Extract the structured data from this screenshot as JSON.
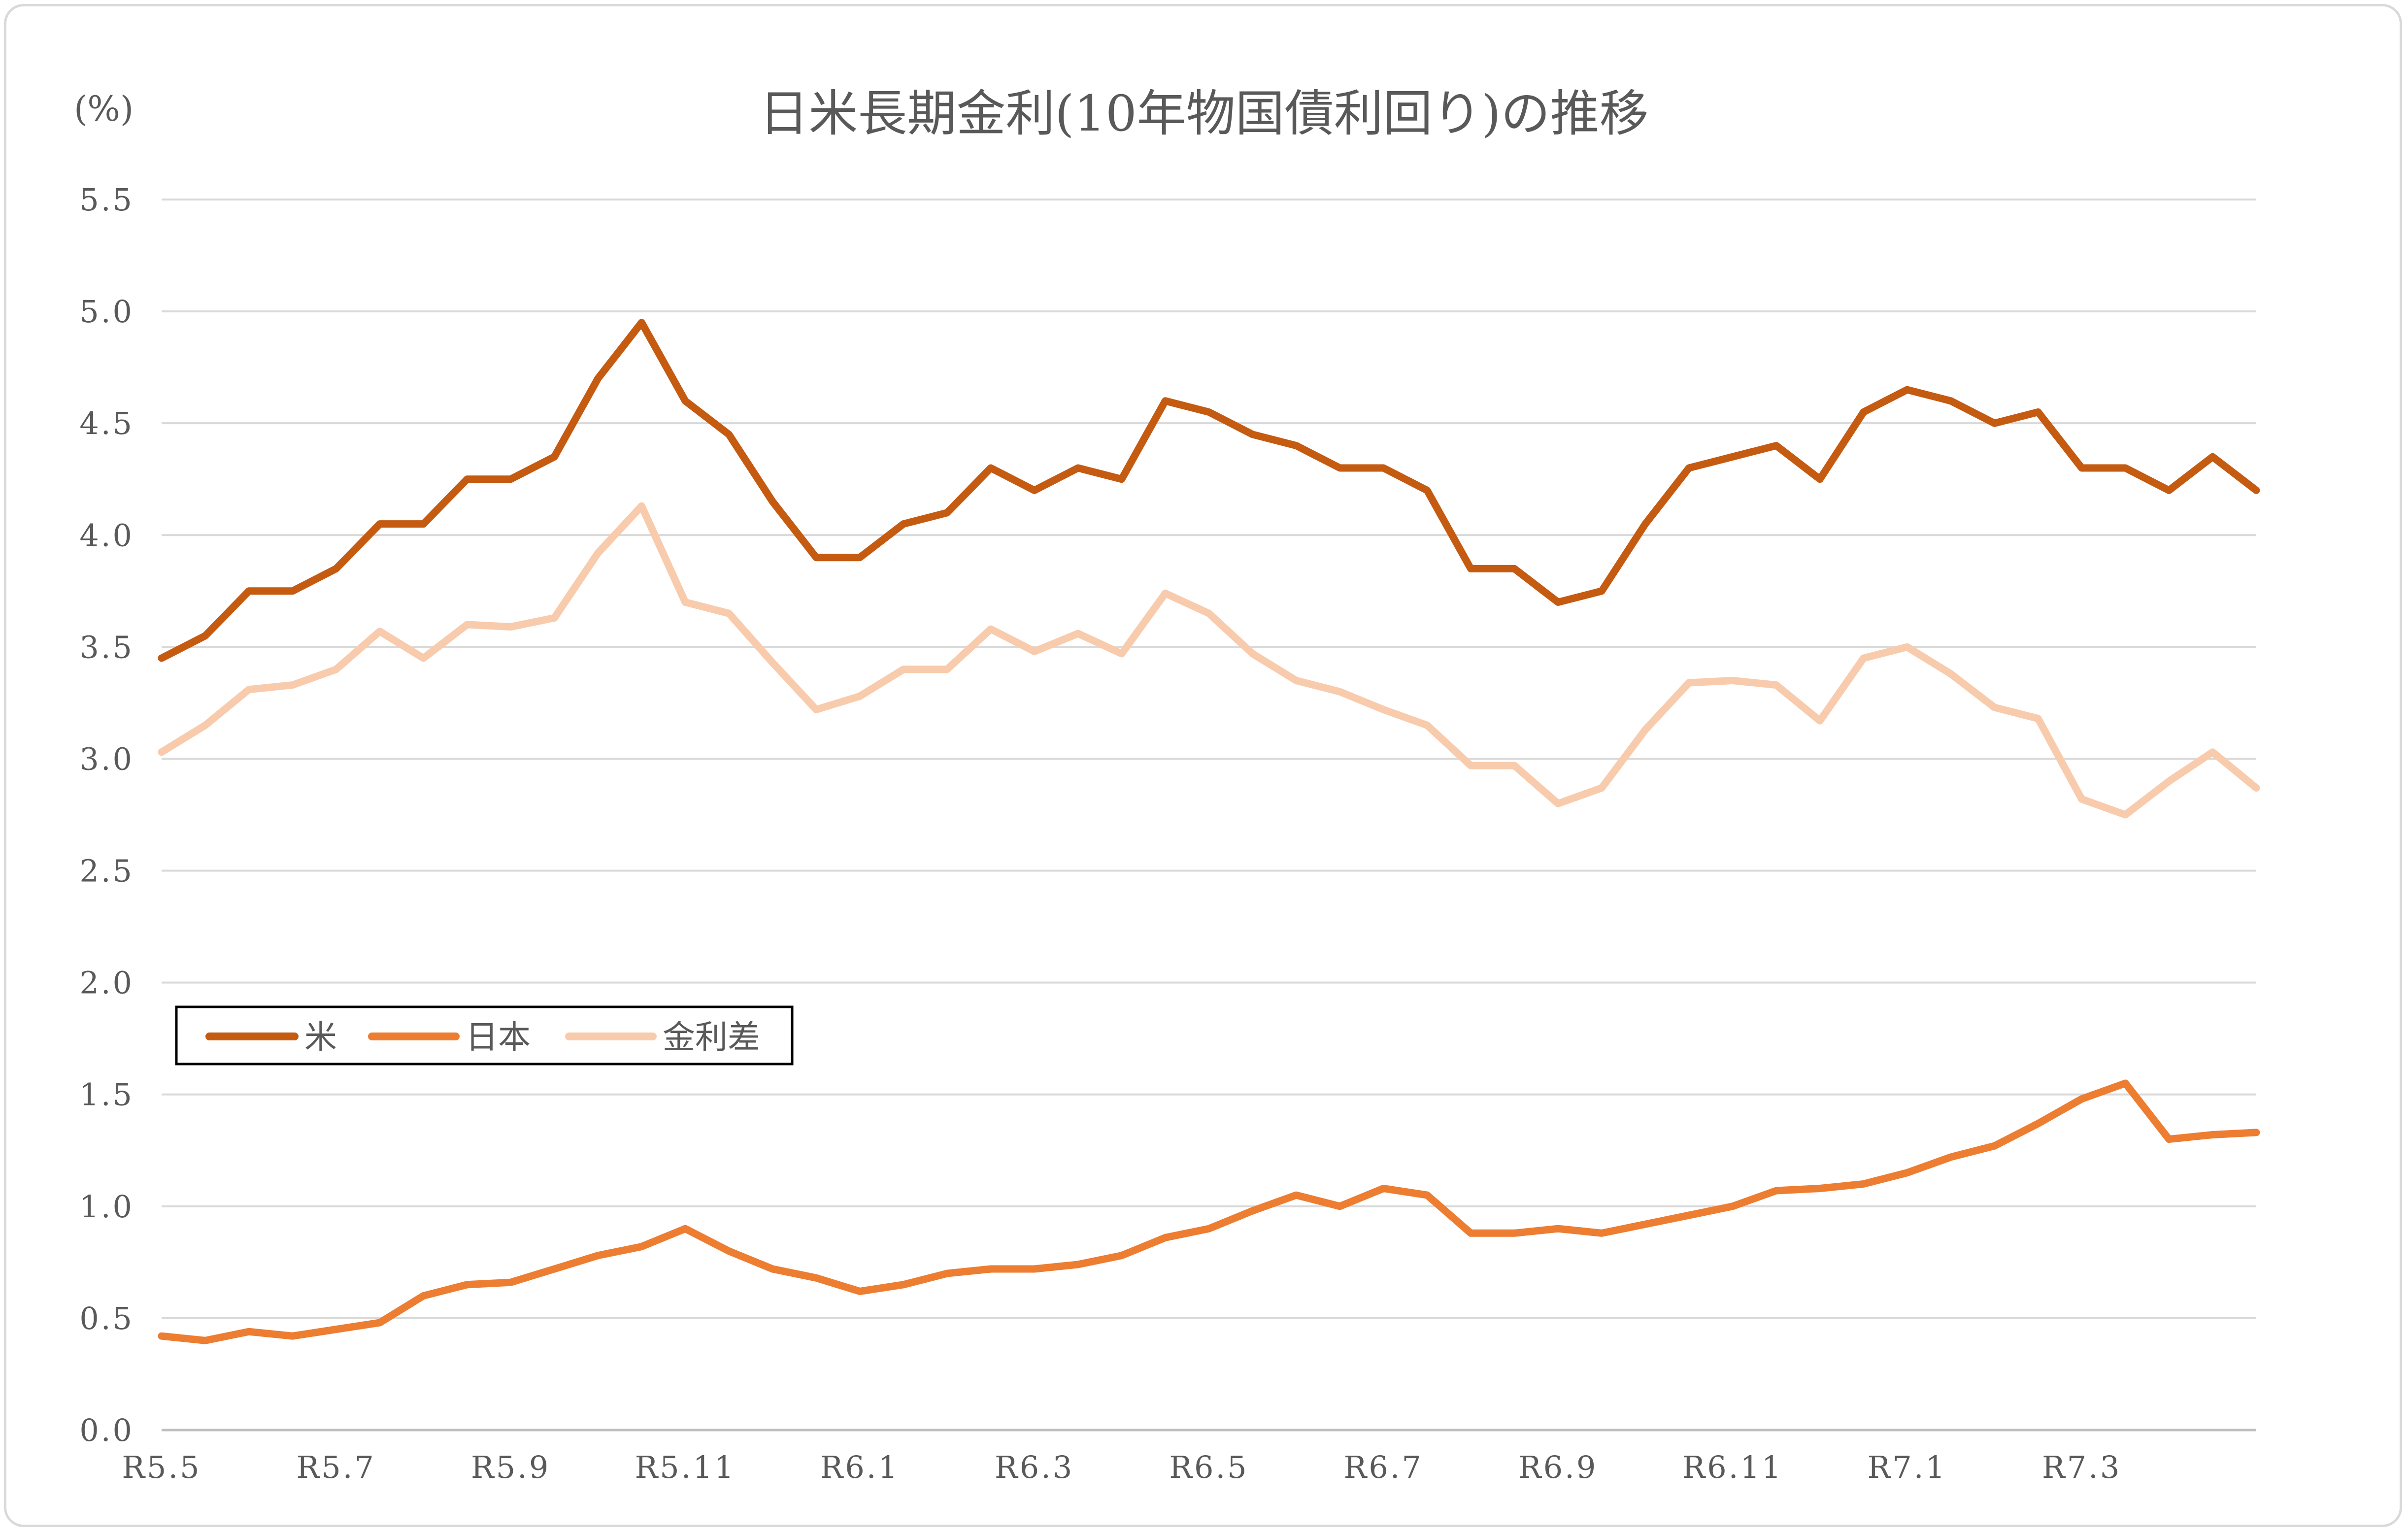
{
  "chart_data": {
    "type": "line",
    "title": "日米長期金利(10年物国債利回り)の推移",
    "unit": "(%)",
    "ylim": [
      0,
      5.5
    ],
    "yticks": [
      "0.0",
      "0.5",
      "1.0",
      "1.5",
      "2.0",
      "2.5",
      "3.0",
      "3.5",
      "4.0",
      "4.5",
      "5.0",
      "5.5"
    ],
    "xticks": [
      "R5.5",
      "R5.7",
      "R5.9",
      "R5.11",
      "R6.1",
      "R6.3",
      "R6.5",
      "R6.7",
      "R6.9",
      "R6.11",
      "R7.1",
      "R7.3"
    ],
    "grid": true,
    "legend_position": "middle-left",
    "series": [
      {
        "name": "米",
        "color": "#c55a11",
        "x": [
          "R5.5",
          "R5.5.15",
          "R5.6",
          "R5.6.15",
          "R5.7",
          "R5.7.15",
          "R5.8",
          "R5.8.15",
          "R5.9",
          "R5.9.15",
          "R5.10",
          "R5.10.15",
          "R5.11",
          "R5.11.15",
          "R5.12",
          "R5.12.15",
          "R6.1",
          "R6.1.15",
          "R6.2",
          "R6.2.15",
          "R6.3",
          "R6.3.15",
          "R6.4",
          "R6.4.15",
          "R6.5",
          "R6.5.15",
          "R6.6",
          "R6.6.15",
          "R6.7",
          "R6.7.15",
          "R6.8",
          "R6.8.15",
          "R6.9",
          "R6.9.15",
          "R6.10",
          "R6.10.15",
          "R6.11",
          "R6.11.15",
          "R6.12",
          "R6.12.15",
          "R7.1",
          "R7.1.15",
          "R7.2",
          "R7.2.15",
          "R7.3",
          "R7.3.15",
          "R7.4",
          "R7.4.15",
          "R7.5"
        ],
        "values": [
          3.45,
          3.55,
          3.75,
          3.75,
          3.85,
          4.05,
          4.05,
          4.25,
          4.25,
          4.35,
          4.7,
          4.95,
          4.6,
          4.45,
          4.15,
          3.9,
          3.9,
          4.05,
          4.1,
          4.3,
          4.2,
          4.3,
          4.25,
          4.6,
          4.55,
          4.45,
          4.4,
          4.3,
          4.3,
          4.2,
          3.85,
          3.85,
          3.7,
          3.75,
          4.05,
          4.3,
          4.35,
          4.4,
          4.25,
          4.55,
          4.65,
          4.6,
          4.5,
          4.55,
          4.3,
          4.3,
          4.2,
          4.35,
          4.2
        ]
      },
      {
        "name": "日本",
        "color": "#ed7d31",
        "x": [
          "R5.5",
          "R5.5.15",
          "R5.6",
          "R5.6.15",
          "R5.7",
          "R5.7.15",
          "R5.8",
          "R5.8.15",
          "R5.9",
          "R5.9.15",
          "R5.10",
          "R5.10.15",
          "R5.11",
          "R5.11.15",
          "R5.12",
          "R5.12.15",
          "R6.1",
          "R6.1.15",
          "R6.2",
          "R6.2.15",
          "R6.3",
          "R6.3.15",
          "R6.4",
          "R6.4.15",
          "R6.5",
          "R6.5.15",
          "R6.6",
          "R6.6.15",
          "R6.7",
          "R6.7.15",
          "R6.8",
          "R6.8.15",
          "R6.9",
          "R6.9.15",
          "R6.10",
          "R6.10.15",
          "R6.11",
          "R6.11.15",
          "R6.12",
          "R6.12.15",
          "R7.1",
          "R7.1.15",
          "R7.2",
          "R7.2.15",
          "R7.3",
          "R7.3.15",
          "R7.4",
          "R7.4.15",
          "R7.5"
        ],
        "values": [
          0.42,
          0.4,
          0.44,
          0.42,
          0.45,
          0.48,
          0.6,
          0.65,
          0.66,
          0.72,
          0.78,
          0.82,
          0.9,
          0.8,
          0.72,
          0.68,
          0.62,
          0.65,
          0.7,
          0.72,
          0.72,
          0.74,
          0.78,
          0.86,
          0.9,
          0.98,
          1.05,
          1.0,
          1.08,
          1.05,
          0.88,
          0.88,
          0.9,
          0.88,
          0.92,
          0.96,
          1.0,
          1.07,
          1.08,
          1.1,
          1.15,
          1.22,
          1.27,
          1.37,
          1.48,
          1.55,
          1.3,
          1.32,
          1.33
        ]
      },
      {
        "name": "金利差",
        "color": "#f8cbad",
        "x": [
          "R5.5",
          "R5.5.15",
          "R5.6",
          "R5.6.15",
          "R5.7",
          "R5.7.15",
          "R5.8",
          "R5.8.15",
          "R5.9",
          "R5.9.15",
          "R5.10",
          "R5.10.15",
          "R5.11",
          "R5.11.15",
          "R5.12",
          "R5.12.15",
          "R6.1",
          "R6.1.15",
          "R6.2",
          "R6.2.15",
          "R6.3",
          "R6.3.15",
          "R6.4",
          "R6.4.15",
          "R6.5",
          "R6.5.15",
          "R6.6",
          "R6.6.15",
          "R6.7",
          "R6.7.15",
          "R6.8",
          "R6.8.15",
          "R6.9",
          "R6.9.15",
          "R6.10",
          "R6.10.15",
          "R6.11",
          "R6.11.15",
          "R6.12",
          "R6.12.15",
          "R7.1",
          "R7.1.15",
          "R7.2",
          "R7.2.15",
          "R7.3",
          "R7.3.15",
          "R7.4",
          "R7.4.15",
          "R7.5"
        ],
        "values": [
          3.03,
          3.15,
          3.31,
          3.33,
          3.4,
          3.57,
          3.45,
          3.6,
          3.59,
          3.63,
          3.92,
          4.13,
          3.7,
          3.65,
          3.43,
          3.22,
          3.28,
          3.4,
          3.4,
          3.58,
          3.48,
          3.56,
          3.47,
          3.74,
          3.65,
          3.47,
          3.35,
          3.3,
          3.22,
          3.15,
          2.97,
          2.97,
          2.8,
          2.87,
          3.13,
          3.34,
          3.35,
          3.33,
          3.17,
          3.45,
          3.5,
          3.38,
          3.23,
          3.18,
          2.82,
          2.75,
          2.9,
          3.03,
          2.87
        ]
      }
    ]
  }
}
